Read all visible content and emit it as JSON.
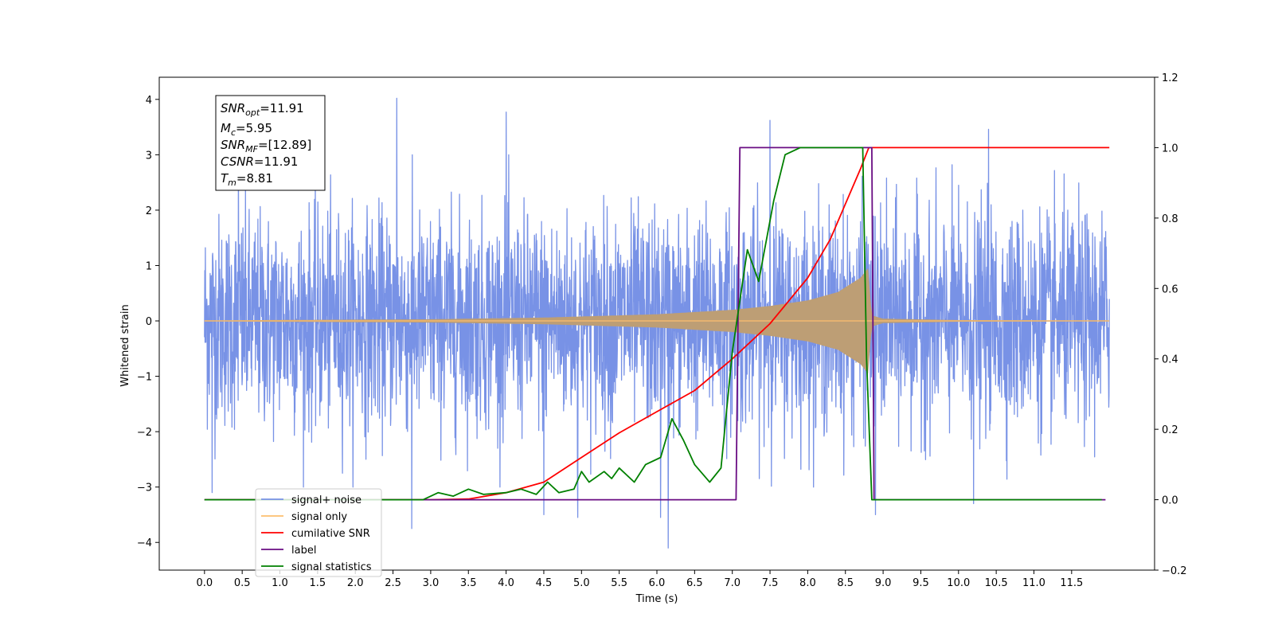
{
  "chart_data": {
    "type": "line",
    "xlabel": "Time (s)",
    "ylabel": "Whitened strain",
    "xlim": [
      -0.6,
      12.6
    ],
    "ylim": [
      -4.5,
      4.4
    ],
    "y2lim": [
      -0.2,
      1.2
    ],
    "x_ticks": [
      "0.0",
      "0.5",
      "1.0",
      "1.5",
      "2.0",
      "2.5",
      "3.0",
      "3.5",
      "4.0",
      "4.5",
      "5.0",
      "5.5",
      "6.0",
      "6.5",
      "7.0",
      "7.5",
      "8.0",
      "8.5",
      "9.0",
      "9.5",
      "10.0",
      "10.5",
      "11.0",
      "11.5"
    ],
    "y_ticks": [
      "4",
      "3",
      "2",
      "1",
      "0",
      "−1",
      "−2",
      "−3",
      "−4"
    ],
    "y2_ticks": [
      "1.2",
      "1.0",
      "0.8",
      "0.6",
      "0.4",
      "0.2",
      "0.0",
      "−0.2"
    ],
    "annotation": {
      "lines": [
        {
          "sym": "SNR",
          "sub": "opt",
          "rest": "=11.91"
        },
        {
          "sym": "M",
          "sub": "c",
          "rest": "=5.95"
        },
        {
          "sym": "SNR",
          "sub": "MF",
          "rest": "=[12.89]"
        },
        {
          "sym": "CSNR",
          "sub": "",
          "rest": "=11.91"
        },
        {
          "sym": "T",
          "sub": "m",
          "rest": "=8.81"
        }
      ]
    },
    "legend_placement": "lower-left",
    "series": [
      {
        "name": "signal+ noise",
        "axis": "left",
        "color": "#7892e6",
        "kind": "noise",
        "x_range": [
          0.0,
          12.0
        ],
        "envelope_std": 0.95,
        "spikes": [
          [
            0.1,
            2.55
          ],
          [
            0.45,
            3.1
          ],
          [
            2.55,
            4.02
          ],
          [
            4.0,
            3.77
          ],
          [
            7.5,
            3.62
          ],
          [
            10.4,
            3.46
          ],
          [
            6.15,
            -4.1
          ],
          [
            2.75,
            -3.75
          ],
          [
            4.5,
            -3.5
          ],
          [
            4.95,
            -3.55
          ],
          [
            6.05,
            -3.55
          ],
          [
            8.9,
            -3.5
          ],
          [
            10.2,
            -3.3
          ],
          [
            0.1,
            -3.1
          ]
        ]
      },
      {
        "name": "signal only",
        "axis": "left",
        "color": "#fdbf6f",
        "fill_color": "#bd9e75",
        "kind": "chirp",
        "x_range": [
          0.0,
          12.0
        ],
        "merger_time": 8.81,
        "envelope": [
          [
            0.0,
            0.01
          ],
          [
            3.0,
            0.03
          ],
          [
            4.5,
            0.06
          ],
          [
            6.0,
            0.12
          ],
          [
            7.0,
            0.2
          ],
          [
            7.5,
            0.27
          ],
          [
            8.0,
            0.37
          ],
          [
            8.4,
            0.52
          ],
          [
            8.7,
            0.78
          ],
          [
            8.8,
            0.95
          ],
          [
            8.85,
            0.1
          ],
          [
            9.0,
            0.04
          ],
          [
            10.0,
            0.015
          ],
          [
            12.0,
            0.01
          ]
        ]
      },
      {
        "name": "cumilative SNR",
        "axis": "right",
        "color": "#ff0000",
        "kind": "line",
        "points": [
          [
            0.0,
            0.0
          ],
          [
            3.0,
            0.0
          ],
          [
            3.5,
            0.002
          ],
          [
            4.0,
            0.02
          ],
          [
            4.5,
            0.05
          ],
          [
            5.0,
            0.12
          ],
          [
            5.5,
            0.19
          ],
          [
            6.0,
            0.25
          ],
          [
            6.5,
            0.31
          ],
          [
            7.0,
            0.4
          ],
          [
            7.5,
            0.5
          ],
          [
            8.0,
            0.63
          ],
          [
            8.3,
            0.74
          ],
          [
            8.5,
            0.84
          ],
          [
            8.7,
            0.94
          ],
          [
            8.81,
            1.0
          ],
          [
            12.0,
            1.0
          ]
        ]
      },
      {
        "name": "label",
        "axis": "right",
        "color": "#6a0d83",
        "kind": "line",
        "points": [
          [
            0.0,
            0.0
          ],
          [
            7.05,
            0.0
          ],
          [
            7.1,
            1.0
          ],
          [
            8.85,
            1.0
          ],
          [
            8.88,
            0.0
          ],
          [
            11.95,
            0.0
          ]
        ]
      },
      {
        "name": "signal statistics",
        "axis": "right",
        "color": "#008000",
        "kind": "line",
        "points": [
          [
            0.0,
            0.0
          ],
          [
            2.9,
            0.0
          ],
          [
            3.1,
            0.02
          ],
          [
            3.3,
            0.01
          ],
          [
            3.5,
            0.03
          ],
          [
            3.7,
            0.015
          ],
          [
            4.0,
            0.02
          ],
          [
            4.2,
            0.03
          ],
          [
            4.4,
            0.015
          ],
          [
            4.55,
            0.05
          ],
          [
            4.7,
            0.02
          ],
          [
            4.9,
            0.03
          ],
          [
            5.0,
            0.08
          ],
          [
            5.1,
            0.05
          ],
          [
            5.3,
            0.08
          ],
          [
            5.4,
            0.06
          ],
          [
            5.5,
            0.09
          ],
          [
            5.7,
            0.05
          ],
          [
            5.85,
            0.1
          ],
          [
            6.05,
            0.12
          ],
          [
            6.2,
            0.23
          ],
          [
            6.35,
            0.17
          ],
          [
            6.5,
            0.1
          ],
          [
            6.7,
            0.05
          ],
          [
            6.85,
            0.09
          ],
          [
            7.0,
            0.42
          ],
          [
            7.2,
            0.71
          ],
          [
            7.35,
            0.62
          ],
          [
            7.55,
            0.85
          ],
          [
            7.7,
            0.98
          ],
          [
            7.9,
            1.0
          ],
          [
            8.2,
            1.0
          ],
          [
            8.5,
            1.0
          ],
          [
            8.73,
            1.0
          ],
          [
            8.78,
            0.4
          ],
          [
            8.85,
            0.0
          ],
          [
            11.9,
            0.0
          ]
        ]
      }
    ],
    "legend": [
      {
        "name": "signal+ noise",
        "color": "#7892e6",
        "alpha": 1.0
      },
      {
        "name": "signal only",
        "color": "#fdbf6f",
        "alpha": 1.0
      },
      {
        "name": "cumilative SNR",
        "color": "#ff0000",
        "alpha": 1.0
      },
      {
        "name": "label",
        "color": "#6a0d83",
        "alpha": 1.0
      },
      {
        "name": "signal statistics",
        "color": "#008000",
        "alpha": 1.0
      }
    ]
  }
}
